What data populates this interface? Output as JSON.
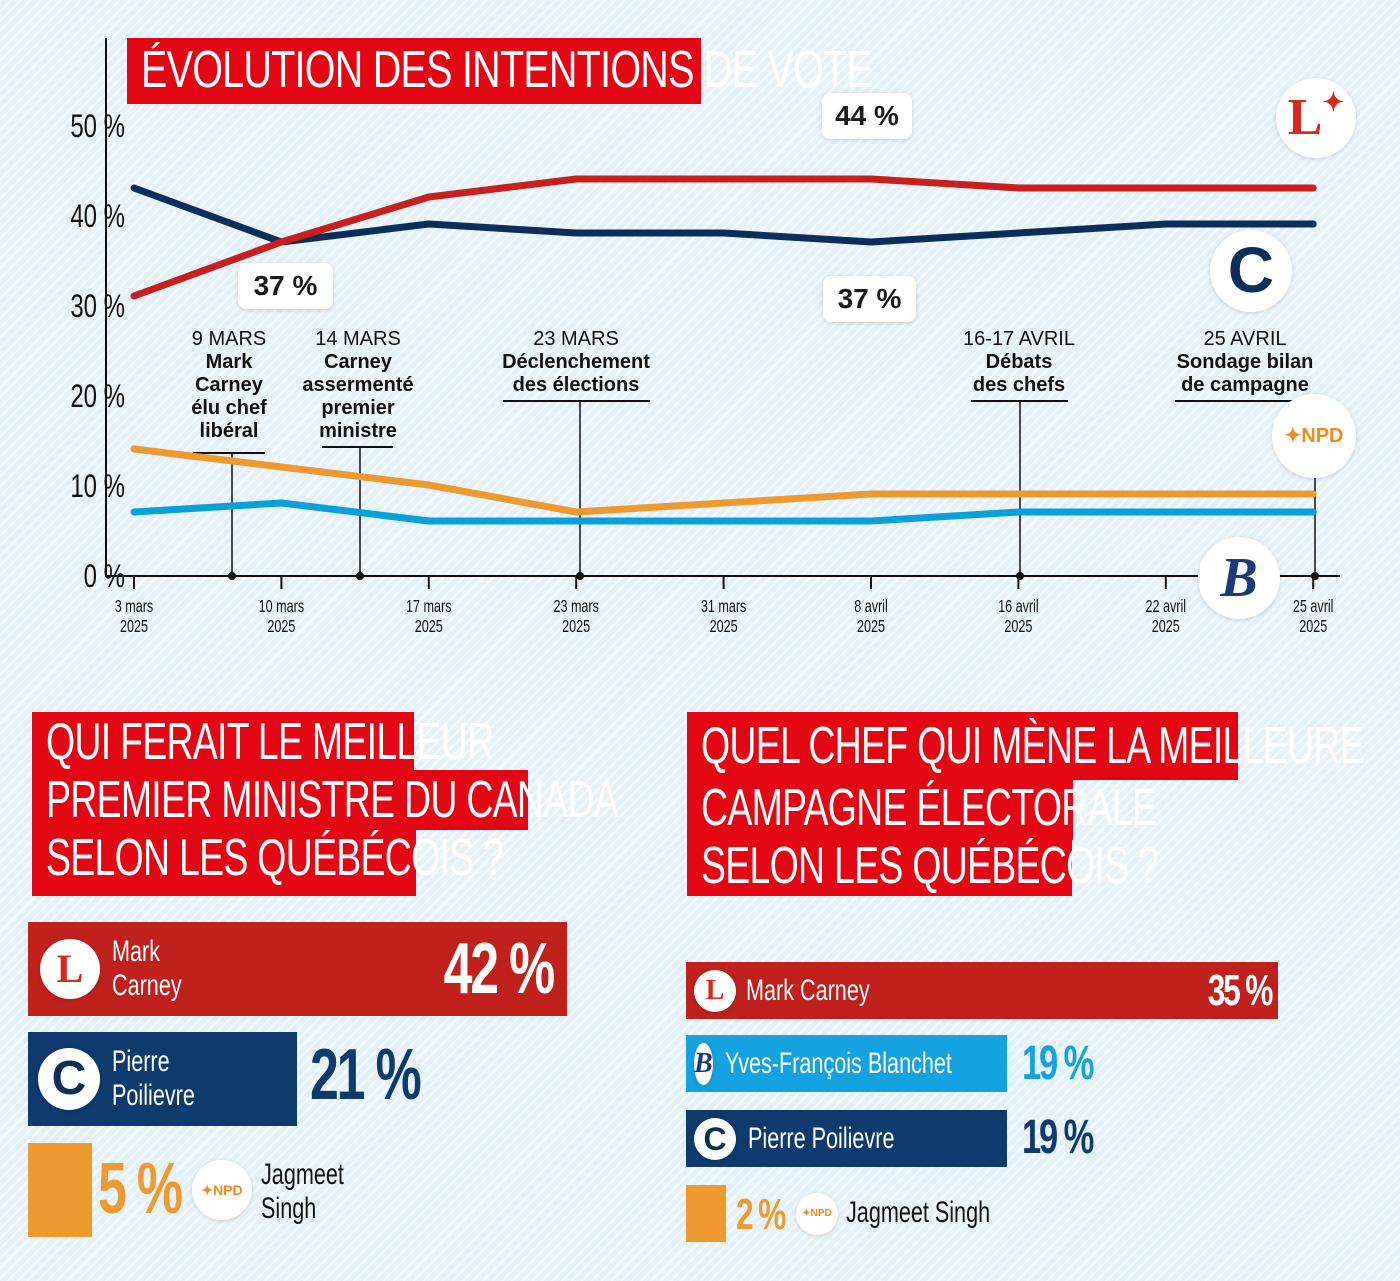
{
  "chart_data": [
    {
      "type": "line",
      "title": "ÉVOLUTION DES INTENTIONS DE VOTE",
      "categories": [
        "3 mars 2025",
        "10 mars 2025",
        "17 mars 2025",
        "23 mars 2025",
        "31 mars 2025",
        "8 avril 2025",
        "16 avril 2025",
        "22 avril 2025",
        "25 avril 2025"
      ],
      "x_tick_labels": [
        [
          "3 mars",
          "2025"
        ],
        [
          "10 mars",
          "2025"
        ],
        [
          "17 mars",
          "2025"
        ],
        [
          "23 mars",
          "2025"
        ],
        [
          "31 mars",
          "2025"
        ],
        [
          "8 avril",
          "2025"
        ],
        [
          "16 avril",
          "2025"
        ],
        [
          "22 avril",
          "2025"
        ],
        [
          "25 avril",
          "2025"
        ]
      ],
      "y_ticks": [
        "0 %",
        "10 %",
        "20 %",
        "30 %",
        "40 %",
        "50 %"
      ],
      "ylim": [
        0,
        50
      ],
      "grid": false,
      "series": [
        {
          "party": "liberal",
          "logo_text": "L",
          "color": "#c8201e",
          "values": [
            31,
            37,
            42,
            44,
            44,
            44,
            43,
            43,
            43
          ]
        },
        {
          "party": "conservative",
          "logo_text": "C",
          "color": "#0d2d5a",
          "values": [
            43,
            37,
            39,
            38,
            38,
            37,
            38,
            39,
            39
          ]
        },
        {
          "party": "npd",
          "logo_text": "NPD",
          "color": "#ef9a2e",
          "values": [
            14,
            12,
            10,
            7,
            8,
            9,
            9,
            9,
            9
          ]
        },
        {
          "party": "bloc",
          "logo_text": "B",
          "color": "#0aa0dc",
          "values": [
            7,
            8,
            6,
            6,
            6,
            6,
            7,
            7,
            7
          ]
        }
      ],
      "annotations": [
        {
          "text": "37 %"
        },
        {
          "text": "44 %"
        },
        {
          "text": "37 %"
        }
      ],
      "events": [
        {
          "date": "9 MARS",
          "text": [
            "Mark",
            "Carney",
            "élu chef",
            "libéral"
          ]
        },
        {
          "date": "14 MARS",
          "text": [
            "Carney",
            "assermenté",
            "premier",
            "ministre"
          ]
        },
        {
          "date": "23 MARS",
          "text": [
            "Déclenchement",
            "des élections"
          ]
        },
        {
          "date": "16-17 AVRIL",
          "text": [
            "Débats",
            "des chefs"
          ]
        },
        {
          "date": "25 AVRIL",
          "text": [
            "Sondage bilan",
            "de campagne"
          ]
        }
      ]
    },
    {
      "type": "bar",
      "title": [
        "QUI FERAIT LE MEILLEUR",
        "PREMIER MINISTRE DU CANADA",
        "SELON LES QUÉBÉCOIS ?"
      ],
      "bars": [
        {
          "name": [
            "Mark",
            "Carney"
          ],
          "value": 42,
          "label": "42 %",
          "color": "#c0211d"
        },
        {
          "name": [
            "Pierre",
            "Poilievre"
          ],
          "value": 21,
          "label": "21 %",
          "color": "#0e3a6e"
        },
        {
          "name": [
            "Jagmeet",
            "Singh"
          ],
          "value": 5,
          "label": "5 %",
          "color": "#ef9a2e"
        }
      ]
    },
    {
      "type": "bar",
      "title": [
        "QUEL CHEF QUI MÈNE LA MEILLEURE",
        "CAMPAGNE ÉLECTORALE",
        "SELON LES QUÉBÉCOIS ?"
      ],
      "bars": [
        {
          "name": "Mark Carney",
          "value": 35,
          "label": "35 %",
          "color": "#c0211d"
        },
        {
          "name": "Yves-François Blanchet",
          "value": 19,
          "label": "19 %",
          "color": "#14a3e0"
        },
        {
          "name": "Pierre Poilievre",
          "value": 19,
          "label": "19 %",
          "color": "#0e3a6e"
        },
        {
          "name": "Jagmeet Singh",
          "value": 2,
          "label": "2 %",
          "color": "#ef9a2e"
        }
      ]
    }
  ]
}
